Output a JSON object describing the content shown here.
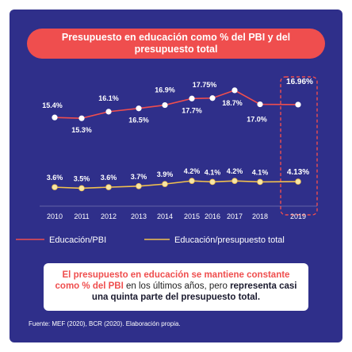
{
  "title": "Presupuesto en educación como % del PBI y del presupuesto total",
  "chart_data": {
    "type": "line",
    "title": "Presupuesto en educación como % del PBI y del presupuesto total",
    "categories": [
      "2010",
      "2011",
      "2012",
      "2013",
      "2014",
      "2015",
      "2016",
      "2017",
      "2018",
      "2019"
    ],
    "series": [
      {
        "name": "Educación/PBI",
        "values": [
          15.4,
          15.3,
          16.1,
          16.5,
          16.9,
          17.7,
          17.75,
          18.7,
          17.0,
          16.96
        ],
        "labels": [
          "15.4%",
          "15.3%",
          "16.1%",
          "16.5%",
          "16.9%",
          "17.7%",
          "17.75%",
          "18.7%",
          "17.0%",
          "16.96%"
        ],
        "color": "#ef4e4e",
        "marker": "#ffffff"
      },
      {
        "name": "Educación/presupuesto total",
        "values": [
          3.6,
          3.5,
          3.6,
          3.7,
          3.9,
          4.2,
          4.1,
          4.2,
          4.1,
          4.13
        ],
        "labels": [
          "3.6%",
          "3.5%",
          "3.6%",
          "3.7%",
          "3.9%",
          "4.2%",
          "4.1%",
          "4.2%",
          "4.1%",
          "4.13%"
        ],
        "color": "#f2c14e",
        "marker": "#f7e6a6"
      }
    ],
    "highlight_category": "2019",
    "legend_position": "bottom"
  },
  "callout": {
    "p1": "El presupuesto en educación se mantiene constante como % del PBI",
    "p2": " en los últimos años, pero ",
    "p3": "representa casi una quinta parte del presupuesto total."
  },
  "source": "Fuente: MEF (2020), BCR (2020). Elaboración propia.",
  "colors": {
    "background": "#2f2f8a",
    "accent": "#ef4e4e",
    "secondary": "#f2c14e",
    "text": "#ffffff"
  }
}
